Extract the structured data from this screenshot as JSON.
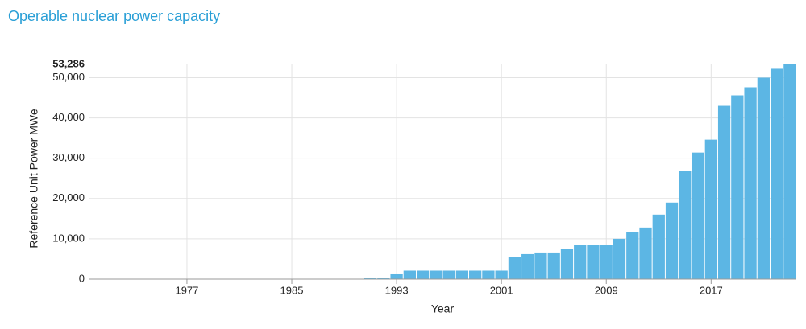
{
  "chart_data": {
    "type": "bar",
    "title": "Operable nuclear power capacity",
    "x_label": "Year",
    "y_label": "Reference Unit Power MWe",
    "x": [
      1970,
      1971,
      1972,
      1973,
      1974,
      1975,
      1976,
      1977,
      1978,
      1979,
      1980,
      1981,
      1982,
      1983,
      1984,
      1985,
      1986,
      1987,
      1988,
      1989,
      1990,
      1991,
      1992,
      1993,
      1994,
      1995,
      1996,
      1997,
      1998,
      1999,
      2000,
      2001,
      2002,
      2003,
      2004,
      2005,
      2006,
      2007,
      2008,
      2009,
      2010,
      2011,
      2012,
      2013,
      2014,
      2015,
      2016,
      2017,
      2018,
      2019,
      2020,
      2021,
      2022,
      2023
    ],
    "values": [
      0,
      0,
      0,
      0,
      0,
      0,
      0,
      0,
      0,
      0,
      0,
      0,
      0,
      0,
      0,
      0,
      0,
      0,
      0,
      0,
      0,
      288,
      288,
      1200,
      2100,
      2100,
      2100,
      2100,
      2100,
      2100,
      2100,
      2100,
      5400,
      6200,
      6600,
      6600,
      7400,
      8400,
      8400,
      8400,
      10000,
      11600,
      12800,
      16000,
      19000,
      26800,
      31400,
      34600,
      43000,
      45600,
      47600,
      50000,
      52200,
      53286
    ],
    "color": "#5cb6e4",
    "xlim": [
      1969.5,
      2023.5
    ],
    "xticks": [
      1977,
      1985,
      1993,
      2001,
      2009,
      2017
    ],
    "ylim": [
      0,
      53286
    ],
    "yticks": [
      0,
      {
        "value": 10000,
        "label": "10,000"
      },
      {
        "value": 20000,
        "label": "20,000"
      },
      {
        "value": 30000,
        "label": "30,000"
      },
      {
        "value": 40000,
        "label": "40,000"
      },
      {
        "value": 50000,
        "label": "50,000"
      },
      {
        "value": 53286,
        "label": "53,286"
      }
    ],
    "grid": true
  }
}
